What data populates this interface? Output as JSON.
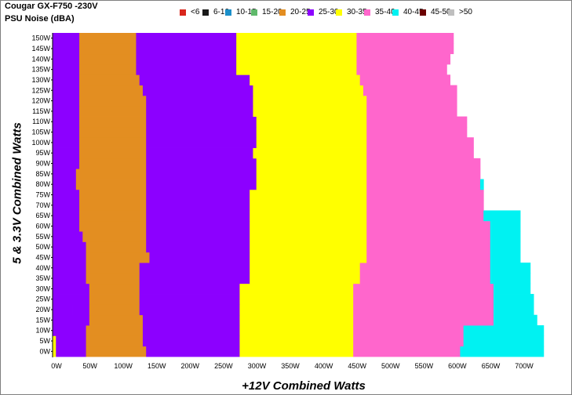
{
  "chart_data": {
    "type": "heatmap",
    "title": "Cougar GX-F750 -230V",
    "subtitle": "PSU Noise (dBA)",
    "xlabel": "+12V Combined Watts",
    "ylabel": "5 & 3.3V Combined Watts",
    "x_step": 5,
    "y_step": 5,
    "xlim": [
      0,
      750
    ],
    "ylim": [
      0,
      150
    ],
    "grid": false,
    "legend_position": "top",
    "x_tick_labels": [
      "0W",
      "50W",
      "100W",
      "150W",
      "200W",
      "250W",
      "300W",
      "350W",
      "400W",
      "450W",
      "500W",
      "550W",
      "600W",
      "650W",
      "700W"
    ],
    "y_tick_labels": [
      "0W",
      "5W",
      "10W",
      "15W",
      "20W",
      "25W",
      "30W",
      "35W",
      "40W",
      "45W",
      "50W",
      "55W",
      "60W",
      "65W",
      "70W",
      "75W",
      "80W",
      "85W",
      "90W",
      "95W",
      "100W",
      "105W",
      "110W",
      "115W",
      "120W",
      "125W",
      "130W",
      "135W",
      "140W",
      "145W",
      "150W"
    ],
    "legend": [
      {
        "label": "<6",
        "color": "#d9261c"
      },
      {
        "label": "6-10",
        "color": "#1a1a1a"
      },
      {
        "label": "10-15",
        "color": "#1b8fc9"
      },
      {
        "label": "15-20",
        "color": "#5fb96b"
      },
      {
        "label": "20-25",
        "color": "#e38e21"
      },
      {
        "label": "25-30",
        "color": "#8c00ff"
      },
      {
        "label": "30-35",
        "color": "#ffff00"
      },
      {
        "label": "35-40",
        "color": "#ff66cc"
      },
      {
        "label": "40-45",
        "color": "#00f2f2"
      },
      {
        "label": "45-50",
        "color": "#6b0000"
      },
      {
        "label": ">50",
        "color": "#bfbfbf"
      }
    ],
    "rows": [
      {
        "y": 0,
        "segments": [
          [
            0,
            5,
            "30-35"
          ],
          [
            5,
            50,
            "25-30"
          ],
          [
            50,
            140,
            "20-25"
          ],
          [
            140,
            280,
            "25-30"
          ],
          [
            280,
            450,
            "30-35"
          ],
          [
            450,
            610,
            "35-40"
          ],
          [
            610,
            735,
            "40-45"
          ]
        ]
      },
      {
        "y": 5,
        "segments": [
          [
            0,
            5,
            "30-35"
          ],
          [
            5,
            50,
            "25-30"
          ],
          [
            50,
            135,
            "20-25"
          ],
          [
            135,
            280,
            "25-30"
          ],
          [
            280,
            450,
            "30-35"
          ],
          [
            450,
            615,
            "35-40"
          ],
          [
            615,
            735,
            "40-45"
          ]
        ]
      },
      {
        "y": 10,
        "segments": [
          [
            0,
            35,
            "25-30"
          ],
          [
            35,
            50,
            "25-30"
          ],
          [
            50,
            135,
            "20-25"
          ],
          [
            135,
            280,
            "25-30"
          ],
          [
            280,
            450,
            "30-35"
          ],
          [
            450,
            615,
            "35-40"
          ],
          [
            615,
            735,
            "40-45"
          ]
        ]
      },
      {
        "y": 15,
        "segments": [
          [
            0,
            35,
            "25-30"
          ],
          [
            35,
            55,
            "25-30"
          ],
          [
            55,
            135,
            "20-25"
          ],
          [
            135,
            280,
            "25-30"
          ],
          [
            280,
            450,
            "30-35"
          ],
          [
            450,
            660,
            "35-40"
          ],
          [
            660,
            725,
            "40-45"
          ]
        ]
      },
      {
        "y": 20,
        "segments": [
          [
            0,
            30,
            "25-30"
          ],
          [
            30,
            55,
            "25-30"
          ],
          [
            55,
            130,
            "20-25"
          ],
          [
            130,
            280,
            "25-30"
          ],
          [
            280,
            450,
            "30-35"
          ],
          [
            450,
            660,
            "35-40"
          ],
          [
            660,
            720,
            "40-45"
          ]
        ]
      },
      {
        "y": 25,
        "segments": [
          [
            0,
            55,
            "25-30"
          ],
          [
            55,
            130,
            "20-25"
          ],
          [
            130,
            280,
            "25-30"
          ],
          [
            280,
            450,
            "30-35"
          ],
          [
            450,
            660,
            "35-40"
          ],
          [
            660,
            720,
            "40-45"
          ]
        ]
      },
      {
        "y": 30,
        "segments": [
          [
            0,
            55,
            "25-30"
          ],
          [
            55,
            130,
            "20-25"
          ],
          [
            130,
            280,
            "25-30"
          ],
          [
            280,
            450,
            "30-35"
          ],
          [
            450,
            660,
            "35-40"
          ],
          [
            660,
            715,
            "40-45"
          ]
        ]
      },
      {
        "y": 35,
        "segments": [
          [
            0,
            50,
            "25-30"
          ],
          [
            50,
            130,
            "20-25"
          ],
          [
            130,
            295,
            "25-30"
          ],
          [
            295,
            460,
            "30-35"
          ],
          [
            460,
            655,
            "35-40"
          ],
          [
            655,
            715,
            "40-45"
          ]
        ]
      },
      {
        "y": 40,
        "segments": [
          [
            0,
            50,
            "25-30"
          ],
          [
            50,
            130,
            "20-25"
          ],
          [
            130,
            295,
            "25-30"
          ],
          [
            295,
            460,
            "30-35"
          ],
          [
            460,
            655,
            "35-40"
          ],
          [
            655,
            715,
            "40-45"
          ]
        ]
      },
      {
        "y": 45,
        "segments": [
          [
            0,
            50,
            "25-30"
          ],
          [
            50,
            145,
            "20-25"
          ],
          [
            145,
            295,
            "25-30"
          ],
          [
            295,
            470,
            "30-35"
          ],
          [
            470,
            655,
            "35-40"
          ],
          [
            655,
            700,
            "40-45"
          ]
        ]
      },
      {
        "y": 50,
        "segments": [
          [
            0,
            50,
            "25-30"
          ],
          [
            50,
            140,
            "20-25"
          ],
          [
            140,
            295,
            "25-30"
          ],
          [
            295,
            470,
            "30-35"
          ],
          [
            470,
            655,
            "35-40"
          ],
          [
            655,
            700,
            "40-45"
          ]
        ]
      },
      {
        "y": 55,
        "segments": [
          [
            0,
            45,
            "25-30"
          ],
          [
            45,
            140,
            "20-25"
          ],
          [
            140,
            295,
            "25-30"
          ],
          [
            295,
            470,
            "30-35"
          ],
          [
            470,
            655,
            "35-40"
          ],
          [
            655,
            700,
            "40-45"
          ]
        ]
      },
      {
        "y": 60,
        "segments": [
          [
            0,
            40,
            "25-30"
          ],
          [
            40,
            140,
            "20-25"
          ],
          [
            140,
            295,
            "25-30"
          ],
          [
            295,
            470,
            "30-35"
          ],
          [
            470,
            655,
            "35-40"
          ],
          [
            655,
            700,
            "40-45"
          ]
        ]
      },
      {
        "y": 65,
        "segments": [
          [
            0,
            40,
            "25-30"
          ],
          [
            40,
            140,
            "20-25"
          ],
          [
            140,
            295,
            "25-30"
          ],
          [
            295,
            470,
            "30-35"
          ],
          [
            470,
            645,
            "35-40"
          ],
          [
            645,
            700,
            "40-45"
          ]
        ]
      },
      {
        "y": 70,
        "segments": [
          [
            0,
            40,
            "25-30"
          ],
          [
            40,
            140,
            "20-25"
          ],
          [
            140,
            295,
            "25-30"
          ],
          [
            295,
            470,
            "30-35"
          ],
          [
            470,
            645,
            "35-40"
          ]
        ]
      },
      {
        "y": 75,
        "segments": [
          [
            0,
            40,
            "25-30"
          ],
          [
            40,
            140,
            "20-25"
          ],
          [
            140,
            295,
            "25-30"
          ],
          [
            295,
            470,
            "30-35"
          ],
          [
            470,
            645,
            "35-40"
          ]
        ]
      },
      {
        "y": 80,
        "segments": [
          [
            0,
            35,
            "25-30"
          ],
          [
            35,
            140,
            "20-25"
          ],
          [
            140,
            305,
            "25-30"
          ],
          [
            305,
            470,
            "30-35"
          ],
          [
            470,
            640,
            "35-40"
          ],
          [
            640,
            645,
            "40-45"
          ]
        ]
      },
      {
        "y": 85,
        "segments": [
          [
            0,
            35,
            "25-30"
          ],
          [
            35,
            140,
            "20-25"
          ],
          [
            140,
            305,
            "25-30"
          ],
          [
            305,
            470,
            "30-35"
          ],
          [
            470,
            640,
            "35-40"
          ]
        ]
      },
      {
        "y": 90,
        "segments": [
          [
            0,
            40,
            "25-30"
          ],
          [
            40,
            140,
            "20-25"
          ],
          [
            140,
            305,
            "25-30"
          ],
          [
            305,
            470,
            "30-35"
          ],
          [
            470,
            640,
            "35-40"
          ]
        ]
      },
      {
        "y": 95,
        "segments": [
          [
            0,
            40,
            "25-30"
          ],
          [
            40,
            140,
            "20-25"
          ],
          [
            140,
            300,
            "25-30"
          ],
          [
            300,
            470,
            "30-35"
          ],
          [
            470,
            630,
            "35-40"
          ]
        ]
      },
      {
        "y": 100,
        "segments": [
          [
            0,
            40,
            "25-30"
          ],
          [
            40,
            140,
            "20-25"
          ],
          [
            140,
            305,
            "25-30"
          ],
          [
            305,
            470,
            "30-35"
          ],
          [
            470,
            630,
            "35-40"
          ]
        ]
      },
      {
        "y": 105,
        "segments": [
          [
            0,
            40,
            "25-30"
          ],
          [
            40,
            140,
            "20-25"
          ],
          [
            140,
            305,
            "25-30"
          ],
          [
            305,
            470,
            "30-35"
          ],
          [
            470,
            620,
            "35-40"
          ]
        ]
      },
      {
        "y": 110,
        "segments": [
          [
            0,
            40,
            "25-30"
          ],
          [
            40,
            140,
            "20-25"
          ],
          [
            140,
            305,
            "25-30"
          ],
          [
            305,
            470,
            "30-35"
          ],
          [
            470,
            620,
            "35-40"
          ]
        ]
      },
      {
        "y": 115,
        "segments": [
          [
            0,
            40,
            "25-30"
          ],
          [
            40,
            140,
            "20-25"
          ],
          [
            140,
            300,
            "25-30"
          ],
          [
            300,
            470,
            "30-35"
          ],
          [
            470,
            605,
            "35-40"
          ]
        ]
      },
      {
        "y": 120,
        "segments": [
          [
            0,
            40,
            "25-30"
          ],
          [
            40,
            140,
            "20-25"
          ],
          [
            140,
            300,
            "25-30"
          ],
          [
            300,
            470,
            "30-35"
          ],
          [
            470,
            605,
            "35-40"
          ]
        ]
      },
      {
        "y": 125,
        "segments": [
          [
            0,
            40,
            "25-30"
          ],
          [
            40,
            135,
            "20-25"
          ],
          [
            135,
            300,
            "25-30"
          ],
          [
            300,
            465,
            "30-35"
          ],
          [
            465,
            605,
            "35-40"
          ]
        ]
      },
      {
        "y": 130,
        "segments": [
          [
            0,
            40,
            "25-30"
          ],
          [
            40,
            130,
            "20-25"
          ],
          [
            130,
            295,
            "25-30"
          ],
          [
            295,
            460,
            "30-35"
          ],
          [
            460,
            595,
            "35-40"
          ]
        ]
      },
      {
        "y": 135,
        "segments": [
          [
            0,
            40,
            "25-30"
          ],
          [
            40,
            125,
            "20-25"
          ],
          [
            125,
            275,
            "25-30"
          ],
          [
            275,
            455,
            "30-35"
          ],
          [
            455,
            590,
            "35-40"
          ]
        ]
      },
      {
        "y": 140,
        "segments": [
          [
            0,
            40,
            "25-30"
          ],
          [
            40,
            125,
            "20-25"
          ],
          [
            125,
            275,
            "25-30"
          ],
          [
            275,
            455,
            "30-35"
          ],
          [
            455,
            595,
            "35-40"
          ]
        ]
      },
      {
        "y": 145,
        "segments": [
          [
            0,
            40,
            "25-30"
          ],
          [
            40,
            125,
            "20-25"
          ],
          [
            125,
            275,
            "25-30"
          ],
          [
            275,
            455,
            "30-35"
          ],
          [
            455,
            600,
            "35-40"
          ]
        ]
      },
      {
        "y": 150,
        "segments": [
          [
            0,
            40,
            "25-30"
          ],
          [
            40,
            125,
            "20-25"
          ],
          [
            125,
            275,
            "25-30"
          ],
          [
            275,
            455,
            "30-35"
          ],
          [
            455,
            600,
            "35-40"
          ]
        ]
      }
    ]
  }
}
